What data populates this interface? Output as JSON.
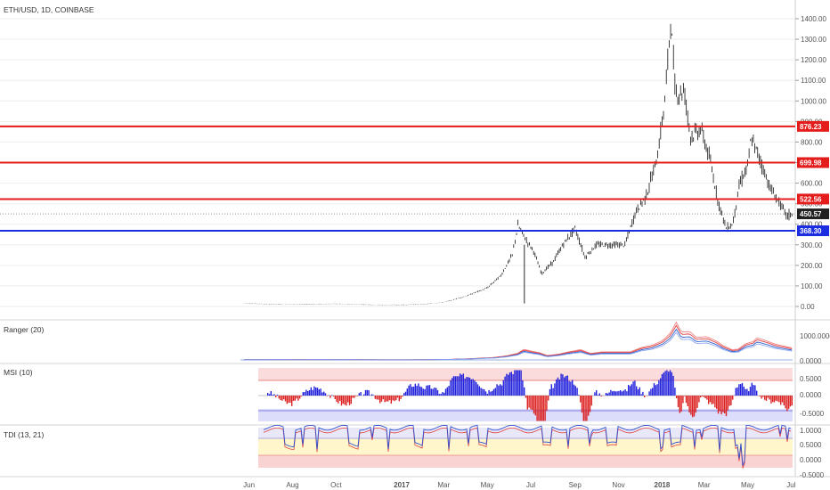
{
  "title": "ETH/USD, 1D, COINBASE",
  "panels": {
    "ranger": {
      "label": "Ranger (20)",
      "ticks": [
        "1000.0000",
        "0.0000"
      ]
    },
    "msi": {
      "label": "MSI (10)",
      "ticks": [
        "0.5000",
        "0.0000",
        "-0.5000"
      ]
    },
    "tdi": {
      "label": "TDI (13, 21)",
      "ticks": [
        "1.0000",
        "0.5000",
        "0.0000",
        "-0.5000"
      ]
    }
  },
  "price_ticks": [
    "1400.00",
    "1300.00",
    "1200.00",
    "1100.00",
    "1000.00",
    "900.00",
    "800.00",
    "700.00",
    "600.00",
    "500.00",
    "400.00",
    "300.00",
    "200.00",
    "100.00",
    "0.00"
  ],
  "x_ticks": [
    "Jun",
    "Aug",
    "Oct",
    "2017",
    "Mar",
    "May",
    "Jul",
    "Sep",
    "Nov",
    "2018",
    "Mar",
    "May",
    "Jul"
  ],
  "levels": [
    {
      "value": 876.23,
      "label": "876.23",
      "color": "#e51c1c"
    },
    {
      "value": 699.98,
      "label": "699.98",
      "color": "#e51c1c"
    },
    {
      "value": 522.56,
      "label": "522.56",
      "color": "#e51c1c"
    },
    {
      "value": 450.57,
      "label": "450.57",
      "color": "#222222",
      "kind": "last"
    },
    {
      "value": 368.3,
      "label": "368.30",
      "color": "#1b2de0"
    }
  ],
  "colors": {
    "up": "#2222dd",
    "down": "#dd2222",
    "grid": "#eeeeee",
    "tdi_zone": "#fff6cc",
    "tdi_band": "#f9d2d2",
    "msi_band_top": "#fbdcdc",
    "msi_band_bottom": "#dcdcfb"
  },
  "chart_data": {
    "type": "line",
    "x_type": "date",
    "y_range": [
      0,
      1420
    ],
    "x_range": [
      "2016-05-20",
      "2018-07-03"
    ],
    "price": [
      [
        "2016-06-01",
        14
      ],
      [
        "2016-07-01",
        12
      ],
      [
        "2016-08-01",
        11
      ],
      [
        "2016-09-01",
        12
      ],
      [
        "2016-10-01",
        13
      ],
      [
        "2016-11-01",
        10
      ],
      [
        "2016-12-01",
        8
      ],
      [
        "2017-01-01",
        8
      ],
      [
        "2017-02-01",
        11
      ],
      [
        "2017-03-01",
        20
      ],
      [
        "2017-04-01",
        50
      ],
      [
        "2017-05-01",
        90
      ],
      [
        "2017-05-20",
        150
      ],
      [
        "2017-06-05",
        250
      ],
      [
        "2017-06-13",
        395
      ],
      [
        "2017-06-25",
        320
      ],
      [
        "2017-07-05",
        270
      ],
      [
        "2017-07-16",
        160
      ],
      [
        "2017-08-01",
        215
      ],
      [
        "2017-08-15",
        300
      ],
      [
        "2017-09-01",
        380
      ],
      [
        "2017-09-15",
        240
      ],
      [
        "2017-10-01",
        300
      ],
      [
        "2017-10-20",
        300
      ],
      [
        "2017-11-10",
        300
      ],
      [
        "2017-11-25",
        460
      ],
      [
        "2017-12-10",
        540
      ],
      [
        "2017-12-25",
        720
      ],
      [
        "2018-01-05",
        1000
      ],
      [
        "2018-01-13",
        1395
      ],
      [
        "2018-01-20",
        1030
      ],
      [
        "2018-02-01",
        1050
      ],
      [
        "2018-02-10",
        830
      ],
      [
        "2018-02-25",
        860
      ],
      [
        "2018-03-10",
        700
      ],
      [
        "2018-03-20",
        520
      ],
      [
        "2018-04-01",
        380
      ],
      [
        "2018-04-10",
        400
      ],
      [
        "2018-04-20",
        600
      ],
      [
        "2018-05-01",
        680
      ],
      [
        "2018-05-06",
        820
      ],
      [
        "2018-05-20",
        700
      ],
      [
        "2018-06-01",
        580
      ],
      [
        "2018-06-15",
        500
      ],
      [
        "2018-06-25",
        440
      ],
      [
        "2018-07-02",
        450.57
      ]
    ],
    "levels": [
      876.23,
      699.98,
      522.56,
      368.3
    ],
    "last_price": 450.57
  }
}
